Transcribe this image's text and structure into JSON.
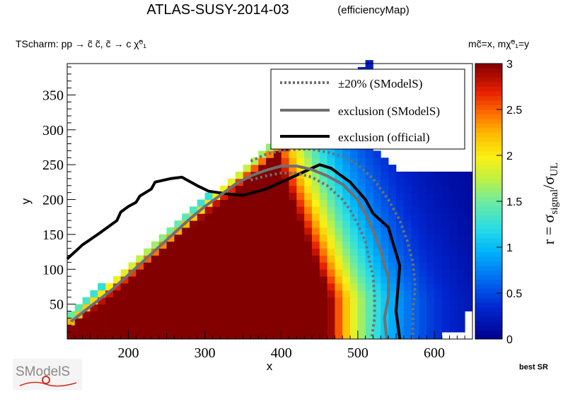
{
  "header": {
    "title_main": "ATLAS-SUSY-2014-03",
    "title_sub": "(efficiencyMap)",
    "process": "TScharm: pp  → c̃ c̃, c̃  → c χ̃⁰₁",
    "mass_def": "mc̃=x, mχ̃⁰₁=y"
  },
  "footer": {
    "best_sr": "best SR",
    "logo_text": "SModelS"
  },
  "chart_data": {
    "type": "heatmap",
    "title": "ATLAS-SUSY-2014-03 (efficiencyMap)",
    "xlabel": "x",
    "ylabel": "y",
    "zlabel": "r = σsignal/σUL",
    "xlim": [
      120,
      650
    ],
    "ylim": [
      0,
      395
    ],
    "zlim": [
      0,
      3
    ],
    "x_ticks": [
      200,
      300,
      400,
      500,
      600
    ],
    "y_ticks": [
      50,
      100,
      150,
      200,
      250,
      300,
      350
    ],
    "z_ticks": [
      0,
      0.5,
      1,
      1.5,
      2,
      2.5,
      3
    ],
    "bin_width": 10,
    "bin_height": 10,
    "note": "Heatmap of r values; r saturates at 3 (dark red) in the low-mass region near the diagonal, falls off towards large x.",
    "legend": {
      "position": "top-right",
      "entries": [
        {
          "label": "±20% (SModelS)",
          "style": "dotted",
          "color": "#707070"
        },
        {
          "label": "exclusion (SModelS)",
          "style": "solid",
          "color": "#707070"
        },
        {
          "label": "exclusion (official)",
          "style": "solid",
          "color": "#000000"
        }
      ]
    },
    "series": [
      {
        "name": "exclusion (official)",
        "color": "#000000",
        "x": [
          120,
          140,
          160,
          175,
          185,
          190,
          200,
          210,
          215,
          230,
          235,
          255,
          270,
          290,
          305,
          330,
          350,
          380,
          420,
          450,
          465,
          490,
          510,
          520,
          540,
          555,
          550,
          555
        ],
        "y": [
          115,
          135,
          150,
          162,
          170,
          182,
          190,
          196,
          205,
          215,
          225,
          230,
          232,
          220,
          212,
          208,
          206,
          215,
          235,
          250,
          245,
          225,
          200,
          180,
          160,
          105,
          40,
          0
        ]
      },
      {
        "name": "exclusion (SModelS)",
        "color": "#707070",
        "x": [
          125,
          140,
          160,
          180,
          200,
          220,
          240,
          260,
          280,
          300,
          320,
          340,
          360,
          380,
          400,
          420,
          440,
          460,
          480,
          500,
          510,
          520,
          530,
          535,
          540,
          540,
          535,
          538
        ],
        "y": [
          25,
          38,
          55,
          72,
          92,
          112,
          132,
          152,
          172,
          190,
          206,
          222,
          234,
          242,
          248,
          248,
          243,
          234,
          222,
          200,
          180,
          155,
          128,
          105,
          90,
          60,
          30,
          0
        ]
      },
      {
        "name": "+20% (SModelS)",
        "color": "#707070",
        "x": [
          360,
          380,
          400,
          420,
          440,
          460,
          480,
          500,
          520,
          540,
          555,
          565,
          572,
          575,
          572,
          572
        ],
        "y": [
          255,
          265,
          270,
          272,
          272,
          268,
          262,
          250,
          230,
          200,
          170,
          140,
          110,
          75,
          40,
          0
        ]
      },
      {
        "name": "-20% (SModelS)",
        "color": "#707070",
        "x": [
          360,
          380,
          400,
          420,
          440,
          460,
          480,
          490,
          500,
          510,
          515,
          520,
          522,
          522,
          518
        ],
        "y": [
          228,
          234,
          238,
          238,
          232,
          220,
          200,
          185,
          165,
          140,
          115,
          90,
          60,
          30,
          0
        ]
      }
    ]
  }
}
